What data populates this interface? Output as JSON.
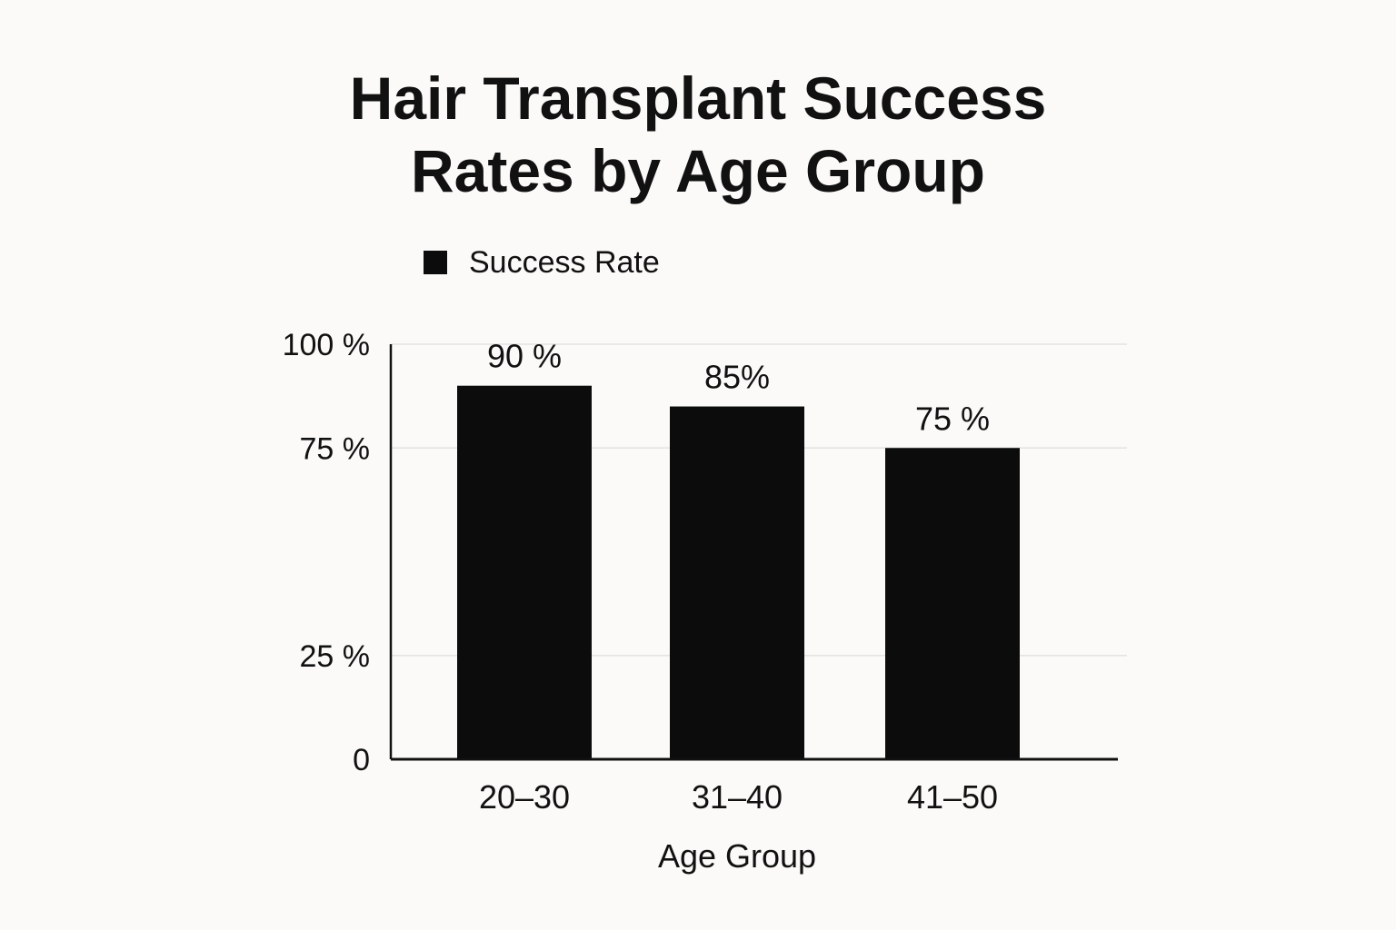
{
  "chart_data": {
    "type": "bar",
    "title": [
      "Hair Transplant Success",
      "Rates by Age Group"
    ],
    "xlabel": "Age Group",
    "ylabel": "",
    "categories": [
      "20–30",
      "31–40",
      "41–50"
    ],
    "series": [
      {
        "name": "Success Rate",
        "values": [
          90,
          85,
          75
        ],
        "value_labels": [
          "90 %",
          "85%",
          "75 %"
        ]
      }
    ],
    "y_ticks": [
      0,
      25,
      75,
      100
    ],
    "y_tick_labels": [
      "0",
      "25 %",
      "75 %",
      "100 %"
    ],
    "ylim": [
      0,
      100
    ],
    "grid": true,
    "legend_placement": "top-left",
    "colors": {
      "bar": "#0b0c0b",
      "axis": "#111111",
      "grid": "#e3e3e0",
      "background": "#fbfaf8"
    }
  }
}
